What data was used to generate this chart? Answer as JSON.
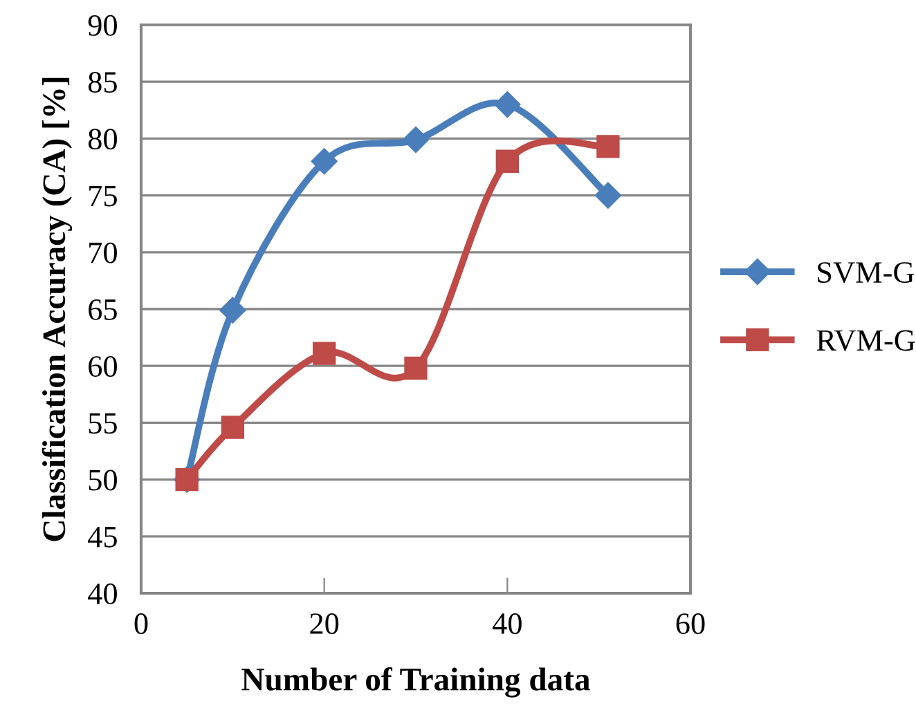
{
  "chart_data": {
    "type": "line",
    "xlabel": "Number of Training data",
    "ylabel": "Classification Accuracy (CA) [%]",
    "xlim": [
      0,
      60
    ],
    "xticks": [
      0,
      20,
      40,
      60
    ],
    "ylim": [
      40,
      90
    ],
    "yticks": [
      40,
      45,
      50,
      55,
      60,
      65,
      70,
      75,
      80,
      85,
      90
    ],
    "grid": "y",
    "legend": "right",
    "series": [
      {
        "name": "SVM-G",
        "color": "#4a7ebb",
        "marker": "diamond",
        "x": [
          5,
          10,
          20,
          30,
          40,
          51
        ],
        "values": [
          50,
          64.9,
          78,
          79.9,
          83,
          75
        ]
      },
      {
        "name": "RVM-G",
        "color": "#be4b48",
        "marker": "square",
        "x": [
          5,
          10,
          20,
          30,
          40,
          51
        ],
        "values": [
          50,
          54.6,
          61.1,
          59.8,
          78,
          79.3
        ]
      }
    ]
  }
}
